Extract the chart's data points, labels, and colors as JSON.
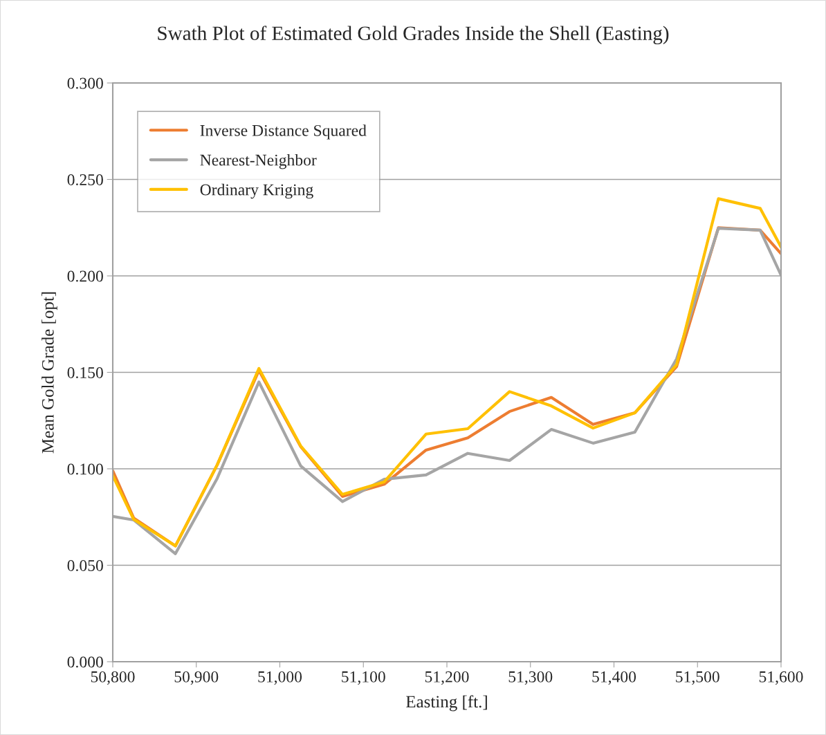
{
  "chart_data": {
    "type": "line",
    "title": "Swath Plot of Estimated Gold Grades Inside the Shell (Easting)",
    "xlabel": "Easting [ft.]",
    "ylabel": "Mean Gold Grade [opt]",
    "x": [
      50800,
      50825,
      50875,
      50925,
      50975,
      51025,
      51075,
      51125,
      51175,
      51225,
      51275,
      51325,
      51375,
      51425,
      51475,
      51525,
      51575,
      51600
    ],
    "series": [
      {
        "name": "Inverse Distance Squared",
        "color": "#ed7d31",
        "values": [
          0.099,
          0.0745,
          0.06,
          0.102,
          0.151,
          0.1115,
          0.0857,
          0.092,
          0.1097,
          0.116,
          0.1297,
          0.137,
          0.123,
          0.129,
          0.153,
          0.225,
          0.2237,
          0.2115
        ]
      },
      {
        "name": "Nearest-Neighbor",
        "color": "#a5a5a5",
        "values": [
          0.0753,
          0.0735,
          0.056,
          0.095,
          0.145,
          0.1015,
          0.083,
          0.0946,
          0.0968,
          0.108,
          0.1043,
          0.1204,
          0.1133,
          0.119,
          0.157,
          0.2247,
          0.2237,
          0.2004
        ]
      },
      {
        "name": "Ordinary Kriging",
        "color": "#ffc000",
        "values": [
          0.0964,
          0.0738,
          0.06,
          0.102,
          0.152,
          0.1118,
          0.0867,
          0.0932,
          0.118,
          0.1208,
          0.14,
          0.1326,
          0.1211,
          0.129,
          0.154,
          0.24,
          0.235,
          0.215
        ]
      }
    ],
    "xlim": [
      50800,
      51600
    ],
    "xticks": [
      {
        "value": 50800,
        "label": "50,800"
      },
      {
        "value": 50900,
        "label": "50,900"
      },
      {
        "value": 51000,
        "label": "51,000"
      },
      {
        "value": 51100,
        "label": "51,100"
      },
      {
        "value": 51200,
        "label": "51,200"
      },
      {
        "value": 51300,
        "label": "51,300"
      },
      {
        "value": 51400,
        "label": "51,400"
      },
      {
        "value": 51500,
        "label": "51,500"
      },
      {
        "value": 51600,
        "label": "51,600"
      }
    ],
    "ylim": [
      0,
      0.3
    ],
    "yticks": [
      {
        "value": 0,
        "label": "0.000"
      },
      {
        "value": 0.05,
        "label": "0.050"
      },
      {
        "value": 0.1,
        "label": "0.100"
      },
      {
        "value": 0.15,
        "label": "0.150"
      },
      {
        "value": 0.2,
        "label": "0.200"
      },
      {
        "value": 0.25,
        "label": "0.250"
      },
      {
        "value": 0.3,
        "label": "0.300"
      }
    ],
    "grid": "y",
    "legend": "top left",
    "marker": "none",
    "line_style": "solid"
  }
}
